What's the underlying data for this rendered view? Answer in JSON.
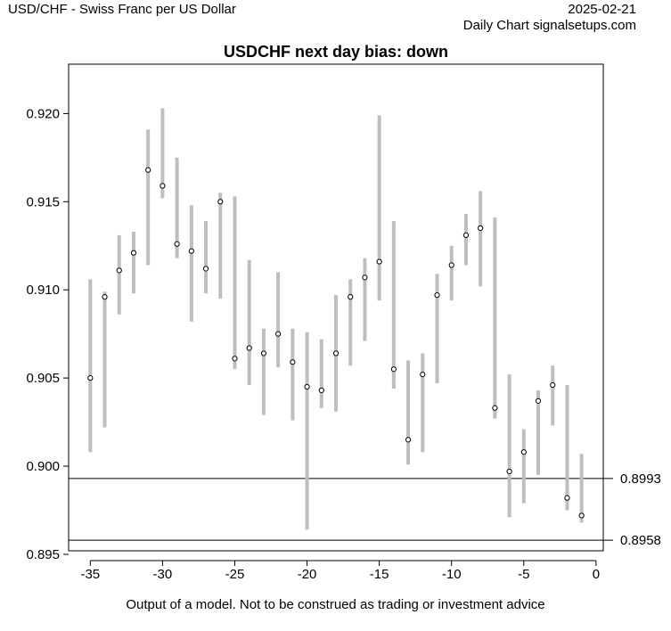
{
  "header": {
    "left": "USD/CHF - Swiss Franc per US Dollar",
    "date": "2025-02-21",
    "source": "Daily Chart signalsetups.com"
  },
  "footer": "Output of a model. Not to be construed as trading or investment advice",
  "chart_data": {
    "type": "range",
    "title": "USDCHF next day bias: down",
    "xlim": [
      -36.5,
      0.5
    ],
    "ylim": [
      0.8952,
      0.9228
    ],
    "x_ticks": [
      -35,
      -30,
      -25,
      -20,
      -15,
      -10,
      -5,
      0
    ],
    "y_ticks": [
      0.895,
      0.9,
      0.905,
      0.91,
      0.915,
      0.92
    ],
    "x_tick_labels": [
      "-35",
      "-30",
      "-25",
      "-20",
      "-15",
      "-10",
      "-5",
      "0"
    ],
    "y_tick_labels": [
      "0.895",
      "0.900",
      "0.905",
      "0.910",
      "0.915",
      "0.920"
    ],
    "range_color": "#bebebe",
    "bars": [
      {
        "x": -35,
        "low": 0.9008,
        "high": 0.9106,
        "close": 0.905
      },
      {
        "x": -34,
        "low": 0.9022,
        "high": 0.9099,
        "close": 0.9096
      },
      {
        "x": -33,
        "low": 0.9086,
        "high": 0.9131,
        "close": 0.9111
      },
      {
        "x": -32,
        "low": 0.9098,
        "high": 0.9133,
        "close": 0.9121
      },
      {
        "x": -31,
        "low": 0.9114,
        "high": 0.9191,
        "close": 0.9168
      },
      {
        "x": -30,
        "low": 0.9152,
        "high": 0.9203,
        "close": 0.9159
      },
      {
        "x": -29,
        "low": 0.9118,
        "high": 0.9175,
        "close": 0.9126
      },
      {
        "x": -28,
        "low": 0.9082,
        "high": 0.9148,
        "close": 0.9122
      },
      {
        "x": -27,
        "low": 0.9098,
        "high": 0.9139,
        "close": 0.9112
      },
      {
        "x": -26,
        "low": 0.9095,
        "high": 0.9155,
        "close": 0.915
      },
      {
        "x": -25,
        "low": 0.9055,
        "high": 0.9153,
        "close": 0.9061
      },
      {
        "x": -24,
        "low": 0.9046,
        "high": 0.9117,
        "close": 0.9067
      },
      {
        "x": -23,
        "low": 0.9029,
        "high": 0.9078,
        "close": 0.9064
      },
      {
        "x": -22,
        "low": 0.9056,
        "high": 0.911,
        "close": 0.9075
      },
      {
        "x": -21,
        "low": 0.9026,
        "high": 0.9078,
        "close": 0.9059
      },
      {
        "x": -20,
        "low": 0.8964,
        "high": 0.9076,
        "close": 0.9045
      },
      {
        "x": -19,
        "low": 0.9033,
        "high": 0.9072,
        "close": 0.9043
      },
      {
        "x": -18,
        "low": 0.9031,
        "high": 0.9097,
        "close": 0.9064
      },
      {
        "x": -17,
        "low": 0.9057,
        "high": 0.9106,
        "close": 0.9096
      },
      {
        "x": -16,
        "low": 0.9071,
        "high": 0.9118,
        "close": 0.9107
      },
      {
        "x": -15,
        "low": 0.9094,
        "high": 0.9199,
        "close": 0.9116
      },
      {
        "x": -14,
        "low": 0.9044,
        "high": 0.9139,
        "close": 0.9055
      },
      {
        "x": -13,
        "low": 0.9001,
        "high": 0.906,
        "close": 0.9015
      },
      {
        "x": -12,
        "low": 0.9008,
        "high": 0.9064,
        "close": 0.9052
      },
      {
        "x": -11,
        "low": 0.9047,
        "high": 0.9109,
        "close": 0.9097
      },
      {
        "x": -10,
        "low": 0.9094,
        "high": 0.9125,
        "close": 0.9114
      },
      {
        "x": -9,
        "low": 0.9114,
        "high": 0.9143,
        "close": 0.9131
      },
      {
        "x": -8,
        "low": 0.9102,
        "high": 0.9156,
        "close": 0.9135
      },
      {
        "x": -7,
        "low": 0.9027,
        "high": 0.9141,
        "close": 0.9033
      },
      {
        "x": -6,
        "low": 0.8971,
        "high": 0.9052,
        "close": 0.8997
      },
      {
        "x": -5,
        "low": 0.8979,
        "high": 0.9021,
        "close": 0.9008
      },
      {
        "x": -4,
        "low": 0.8995,
        "high": 0.9043,
        "close": 0.9037
      },
      {
        "x": -3,
        "low": 0.9023,
        "high": 0.9057,
        "close": 0.9046
      },
      {
        "x": -2,
        "low": 0.8975,
        "high": 0.9046,
        "close": 0.8982
      },
      {
        "x": -1,
        "low": 0.8968,
        "high": 0.9007,
        "close": 0.8972
      }
    ],
    "levels": [
      {
        "value": 0.8993,
        "label": "0.8993"
      },
      {
        "value": 0.8958,
        "label": "0.8958"
      }
    ]
  }
}
